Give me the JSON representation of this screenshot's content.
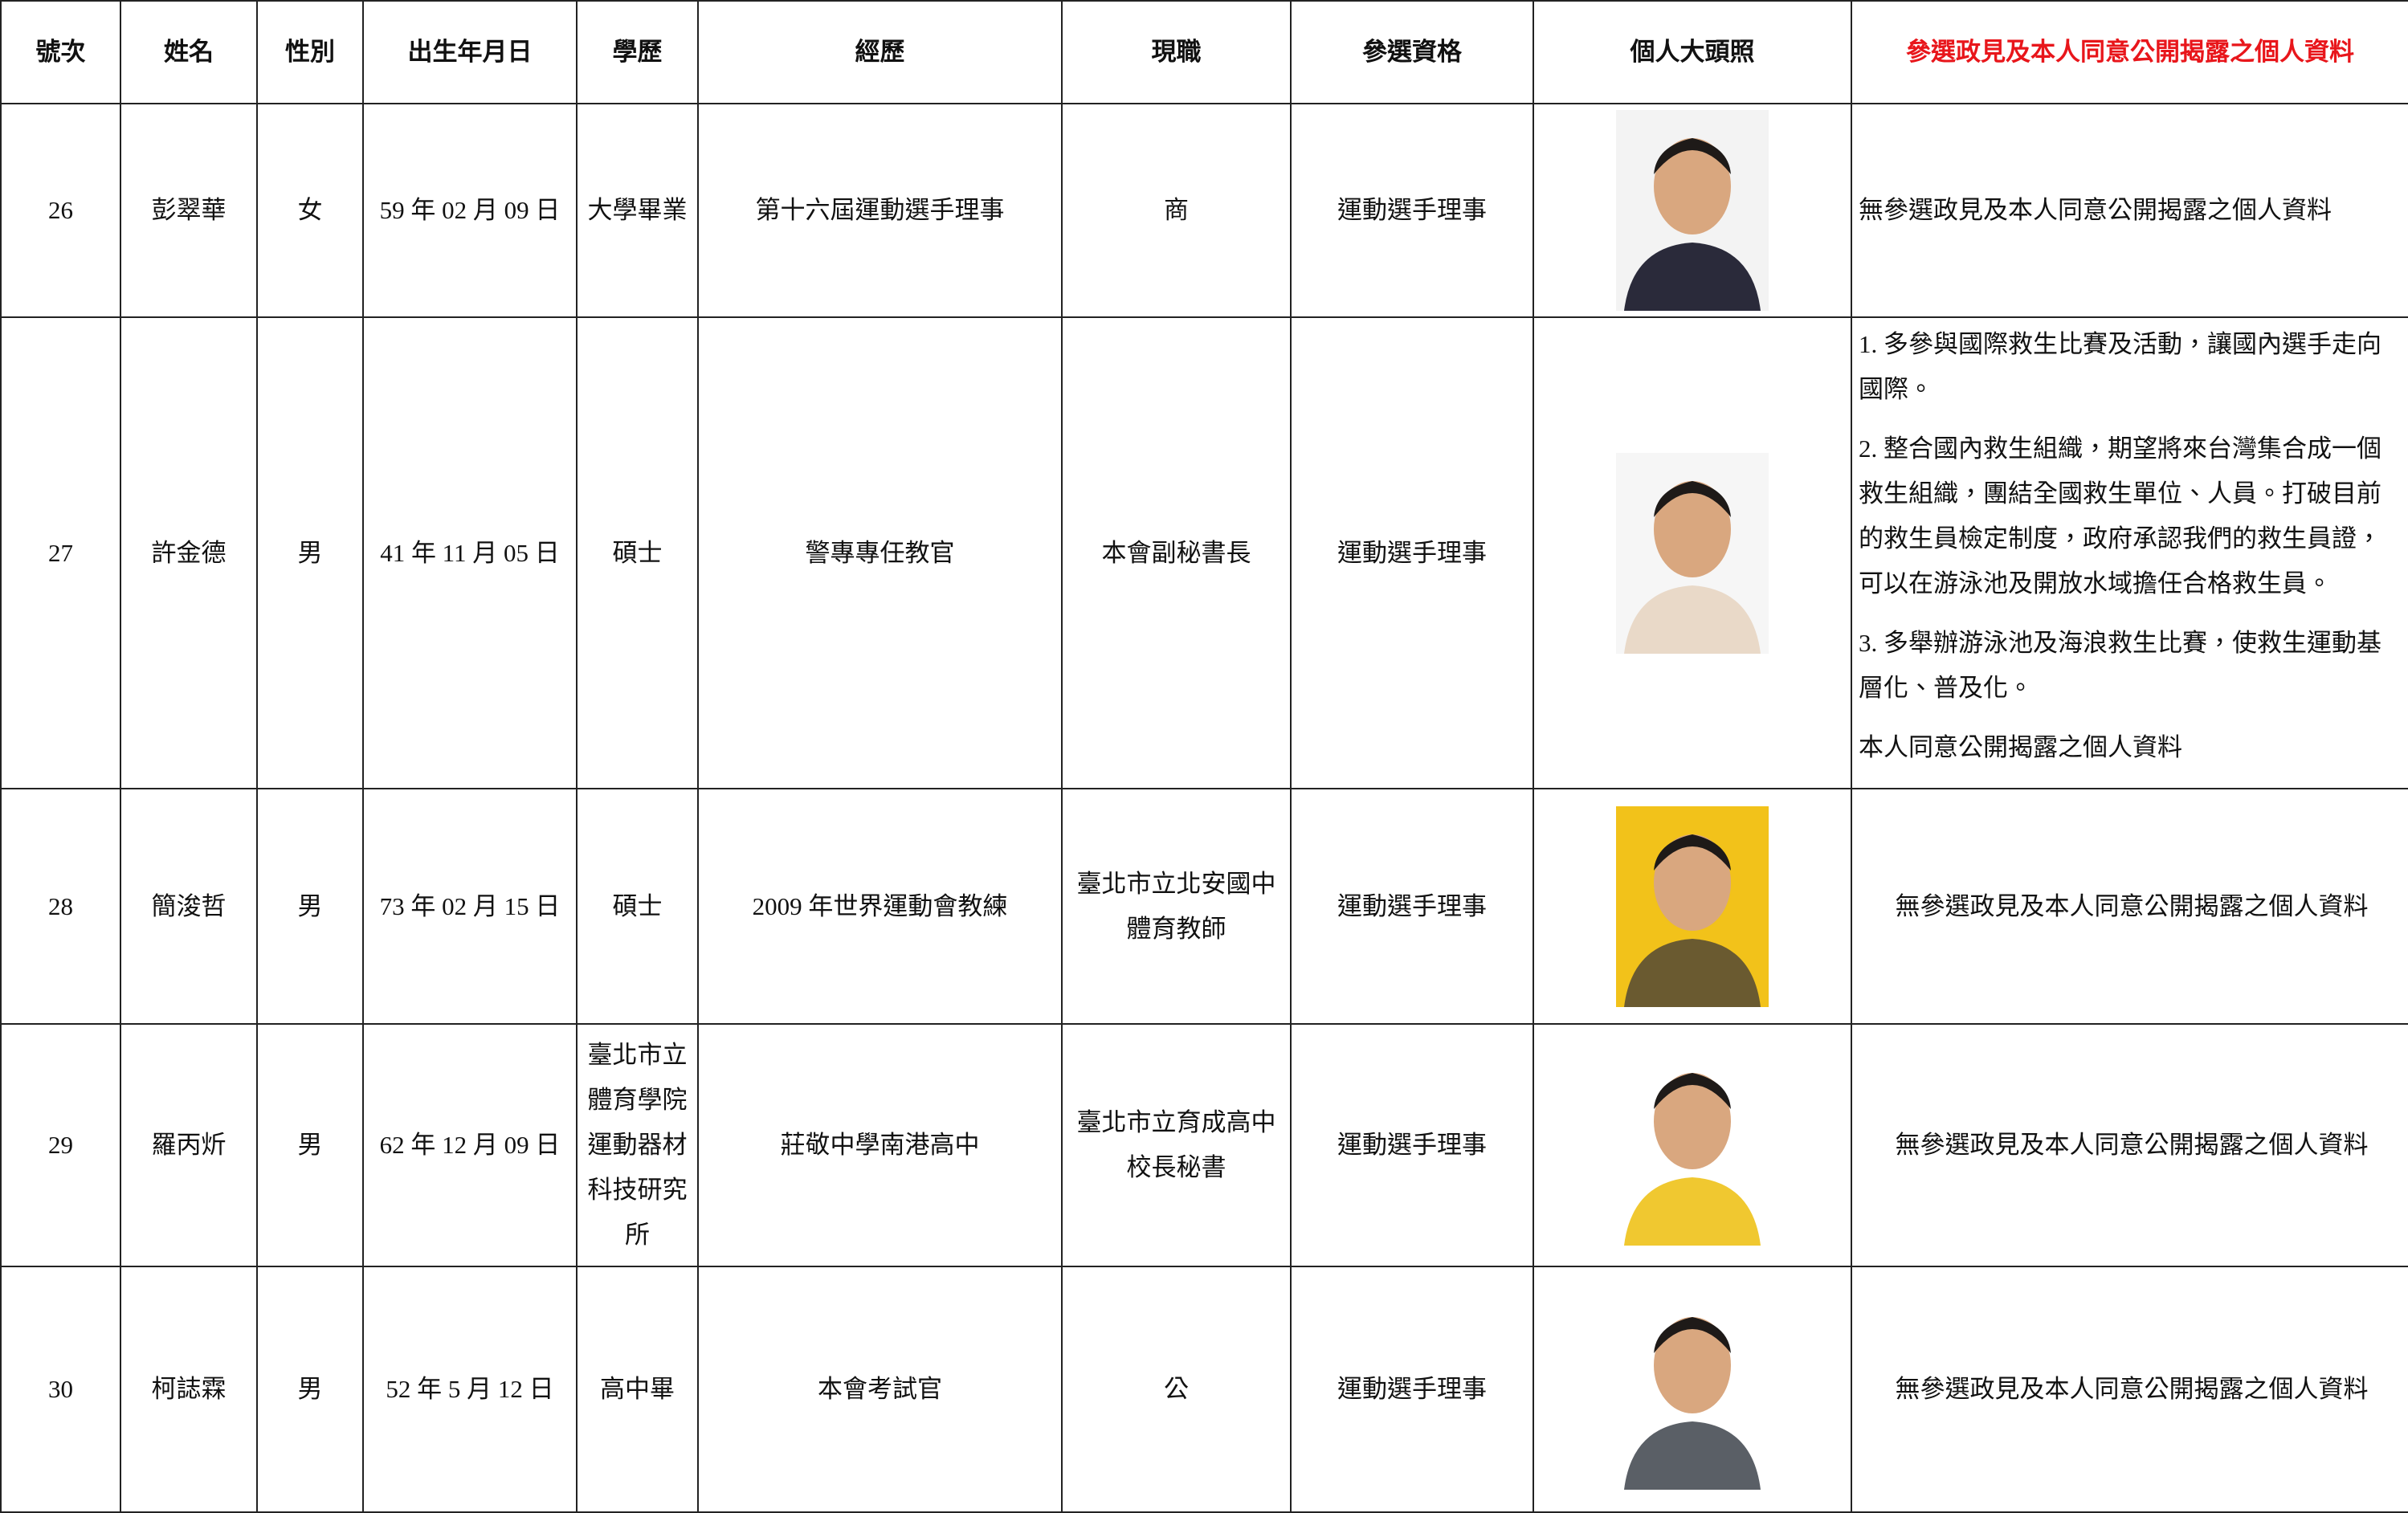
{
  "table": {
    "headers": [
      "號次",
      "姓名",
      "性別",
      "出生年月日",
      "學歷",
      "經歷",
      "現職",
      "參選資格",
      "個人大頭照",
      "參選政見及本人同意公開揭露之個人資料"
    ],
    "rows": [
      {
        "no": "26",
        "name": "彭翠華",
        "gender": "女",
        "birth": "59 年 02 月 09 日",
        "education": "大學畢業",
        "experience": "第十六屆運動選手理事",
        "position": "商",
        "qualification": "運動選手理事",
        "statement": "無參選政見及本人同意公開揭露之個人資料"
      },
      {
        "no": "27",
        "name": "許金德",
        "gender": "男",
        "birth": "41 年 11 月 05 日",
        "education": "碩士",
        "experience": "警專專任教官",
        "position": "本會副秘書長",
        "qualification": "運動選手理事",
        "statement": [
          "1. 多參與國際救生比賽及活動，讓國內選手走向國際。",
          "2. 整合國內救生組織，期望將來台灣集合成一個救生組織，團結全國救生單位、人員。打破目前的救生員檢定制度，政府承認我們的救生員證，可以在游泳池及開放水域擔任合格救生員。",
          "3. 多舉辦游泳池及海浪救生比賽，使救生運動基層化、普及化。",
          "本人同意公開揭露之個人資料"
        ]
      },
      {
        "no": "28",
        "name": "簡浚哲",
        "gender": "男",
        "birth": "73 年 02 月 15 日",
        "education": "碩士",
        "experience": "2009 年世界運動會教練",
        "position": "臺北市立北安國中體育教師",
        "qualification": "運動選手理事",
        "statement": "無參選政見及本人同意公開揭露之個人資料"
      },
      {
        "no": "29",
        "name": "羅丙炘",
        "gender": "男",
        "birth": "62 年 12 月 09 日",
        "education": "臺北市立體育學院運動器材科技研究所",
        "experience": "莊敬中學南港高中",
        "position": "臺北市立育成高中校長秘書",
        "qualification": "運動選手理事",
        "statement": "無參選政見及本人同意公開揭露之個人資料"
      },
      {
        "no": "30",
        "name": "柯誌霖",
        "gender": "男",
        "birth": "52 年 5 月 12 日",
        "education": "高中畢",
        "experience": "本會考試官",
        "position": "公",
        "qualification": "運動選手理事",
        "statement": "無參選政見及本人同意公開揭露之個人資料"
      }
    ]
  }
}
